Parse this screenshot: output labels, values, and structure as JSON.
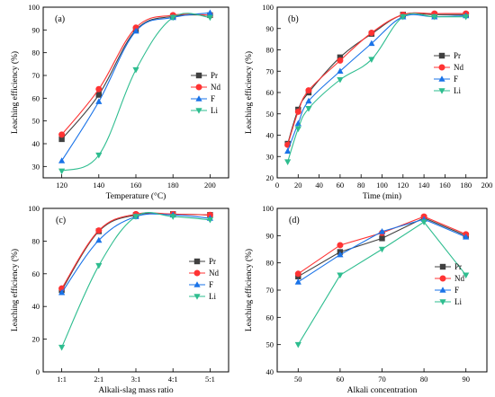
{
  "chart_data": [
    {
      "type": "line",
      "panel_label": "(a)",
      "xlabel": "Temperature (°C)",
      "ylabel": "Leaching efficiency (%)",
      "xlim": [
        110,
        210
      ],
      "ylim": [
        25,
        100
      ],
      "xticks": [
        120,
        140,
        160,
        180,
        200
      ],
      "yticks": [
        30,
        40,
        50,
        60,
        70,
        80,
        90,
        100
      ],
      "x": [
        120,
        140,
        160,
        180,
        200
      ],
      "smooth": true,
      "legend_position": "right",
      "series": [
        {
          "name": "Pr",
          "color": "#404040",
          "marker": "square",
          "values": [
            42,
            61.5,
            90,
            96,
            96.5
          ]
        },
        {
          "name": "Nd",
          "color": "#ff3333",
          "marker": "circle",
          "values": [
            44,
            64,
            91,
            96.5,
            96.5
          ]
        },
        {
          "name": "F",
          "color": "#1a73e8",
          "marker": "triangle-up",
          "values": [
            32.5,
            58.5,
            89.5,
            95.5,
            97.5
          ]
        },
        {
          "name": "Li",
          "color": "#2ebd8f",
          "marker": "triangle-down",
          "values": [
            28,
            35,
            72.5,
            95.5,
            95.5
          ]
        }
      ]
    },
    {
      "type": "line",
      "panel_label": "(b)",
      "xlabel": "Time (min)",
      "ylabel": "Leaching efficiency (%)",
      "xlim": [
        0,
        200
      ],
      "ylim": [
        20,
        100
      ],
      "xticks": [
        0,
        20,
        40,
        60,
        80,
        100,
        120,
        140,
        160,
        180,
        200
      ],
      "yticks": [
        20,
        30,
        40,
        50,
        60,
        70,
        80,
        90,
        100
      ],
      "x": [
        10,
        20,
        30,
        60,
        90,
        120,
        150,
        180
      ],
      "smooth": true,
      "legend_position": "right",
      "series": [
        {
          "name": "Pr",
          "color": "#404040",
          "marker": "square",
          "values": [
            36,
            52,
            60,
            76.5,
            87.5,
            96.5,
            96.5,
            96.5
          ]
        },
        {
          "name": "Nd",
          "color": "#ff3333",
          "marker": "circle",
          "values": [
            35.5,
            51,
            61,
            75,
            88,
            96.5,
            97,
            97
          ]
        },
        {
          "name": "F",
          "color": "#1a73e8",
          "marker": "triangle-up",
          "values": [
            32.5,
            45.5,
            56,
            70,
            83,
            95.5,
            95.5,
            96
          ]
        },
        {
          "name": "Li",
          "color": "#2ebd8f",
          "marker": "triangle-down",
          "values": [
            27.5,
            43,
            52.5,
            66,
            75.5,
            95.5,
            95.5,
            95.5
          ]
        }
      ]
    },
    {
      "type": "line",
      "panel_label": "(c)",
      "xlabel": "Alkali-slag mass ratio",
      "ylabel": "Leaching efficiency (%)",
      "categories": [
        "1:1",
        "2:1",
        "3:1",
        "4:1",
        "5:1"
      ],
      "xlim": [
        0.5,
        5.5
      ],
      "ylim": [
        0,
        100
      ],
      "xticks": [
        1,
        2,
        3,
        4,
        5
      ],
      "yticks": [
        0,
        20,
        40,
        60,
        80,
        100
      ],
      "x": [
        1,
        2,
        3,
        4,
        5
      ],
      "smooth": true,
      "legend_position": "right",
      "series": [
        {
          "name": "Pr",
          "color": "#404040",
          "marker": "square",
          "values": [
            50,
            86,
            96,
            96.5,
            96
          ]
        },
        {
          "name": "Nd",
          "color": "#ff3333",
          "marker": "circle",
          "values": [
            51,
            86.5,
            96.5,
            96.5,
            96
          ]
        },
        {
          "name": "F",
          "color": "#1a73e8",
          "marker": "triangle-up",
          "values": [
            48.5,
            80.5,
            95,
            96,
            94
          ]
        },
        {
          "name": "Li",
          "color": "#2ebd8f",
          "marker": "triangle-down",
          "values": [
            15,
            65,
            95,
            95,
            93
          ]
        }
      ]
    },
    {
      "type": "line",
      "panel_label": "(d)",
      "xlabel": "Alkali concentration",
      "ylabel": "Leaching efficiency (%)",
      "xlim": [
        45,
        95
      ],
      "ylim": [
        40,
        100
      ],
      "xticks": [
        50,
        60,
        70,
        80,
        90
      ],
      "yticks": [
        40,
        50,
        60,
        70,
        80,
        90,
        100
      ],
      "x": [
        50,
        60,
        70,
        80,
        90
      ],
      "smooth": false,
      "legend_position": "right",
      "series": [
        {
          "name": "Pr",
          "color": "#404040",
          "marker": "square",
          "values": [
            75,
            84,
            89,
            96.5,
            90
          ]
        },
        {
          "name": "Nd",
          "color": "#ff3333",
          "marker": "circle",
          "values": [
            76,
            86.5,
            91,
            97,
            90.5
          ]
        },
        {
          "name": "F",
          "color": "#1a73e8",
          "marker": "triangle-up",
          "values": [
            73,
            83,
            91.5,
            96,
            89.5
          ]
        },
        {
          "name": "Li",
          "color": "#2ebd8f",
          "marker": "triangle-down",
          "values": [
            50,
            75.5,
            85,
            95,
            75.5
          ]
        }
      ]
    }
  ]
}
